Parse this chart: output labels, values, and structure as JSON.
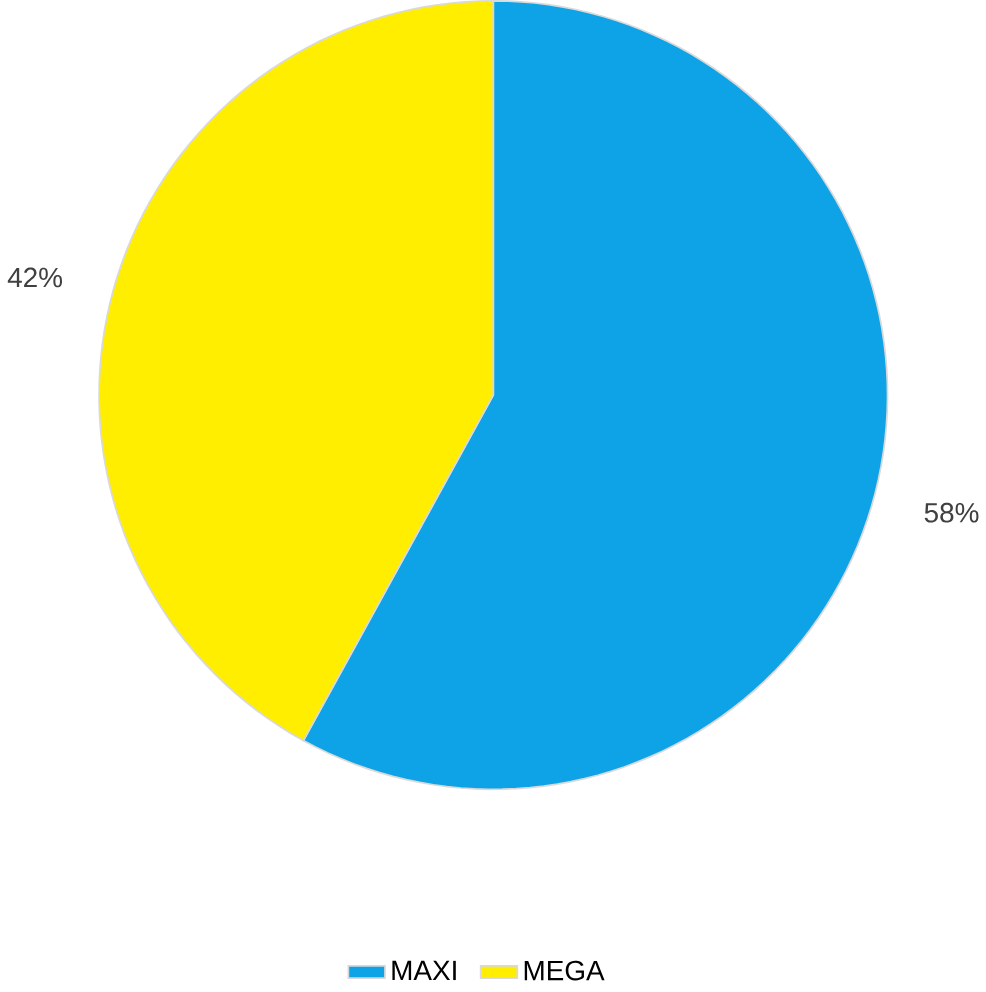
{
  "chart_data": {
    "type": "pie",
    "categories": [
      "MAXI",
      "MEGA"
    ],
    "values": [
      58,
      42
    ],
    "colors": [
      "#0ea2e6",
      "#ffee00"
    ],
    "value_labels": [
      "58%",
      "42%"
    ],
    "legend": "bottom"
  }
}
